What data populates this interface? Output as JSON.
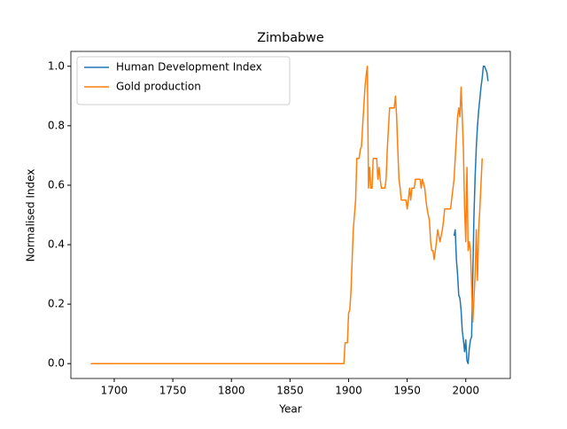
{
  "chart_data": {
    "type": "line",
    "title": "Zimbabwe",
    "xlabel": "Year",
    "ylabel": "Normalised Index",
    "xlim": [
      1663,
      2038
    ],
    "ylim": [
      -0.05,
      1.05
    ],
    "xticks": [
      1700,
      1750,
      1800,
      1850,
      1900,
      1950,
      2000
    ],
    "yticks": [
      {
        "value": 0,
        "label": "0.0"
      },
      0.2,
      0.4,
      0.6,
      0.8,
      {
        "value": 1,
        "label": "1.0"
      }
    ],
    "grid": false,
    "legend": "upper left",
    "series": [
      {
        "name": "Human Development Index",
        "color": "#1f77b4",
        "x": [
          1990,
          1991,
          1992,
          1993,
          1994,
          1995,
          1996,
          1997,
          1998,
          1999,
          2000,
          2001,
          2002,
          2003,
          2004,
          2005,
          2006,
          2007,
          2008,
          2009,
          2010,
          2011,
          2012,
          2013,
          2014,
          2015,
          2016,
          2017,
          2018,
          2019
        ],
        "values": [
          0.43,
          0.45,
          0.35,
          0.3,
          0.23,
          0.22,
          0.18,
          0.11,
          0.08,
          0.04,
          0.08,
          0.01,
          0.0,
          0.05,
          0.08,
          0.09,
          0.3,
          0.5,
          0.63,
          0.73,
          0.8,
          0.85,
          0.89,
          0.93,
          0.96,
          1.0,
          1.0,
          0.99,
          0.98,
          0.95
        ]
      },
      {
        "name": "Gold production",
        "color": "#ff7f0e",
        "x": [
          1680,
          1896,
          1897,
          1899,
          1900,
          1901,
          1902,
          1904,
          1906,
          1907,
          1909,
          1910,
          1911,
          1912,
          1914,
          1915,
          1916,
          1917,
          1918,
          1919,
          1920,
          1921,
          1924,
          1925,
          1926,
          1927,
          1928,
          1931,
          1932,
          1933,
          1934,
          1935,
          1938,
          1939,
          1940,
          1941,
          1942,
          1943,
          1944,
          1945,
          1949,
          1950,
          1951,
          1952,
          1953,
          1954,
          1956,
          1957,
          1961,
          1962,
          1963,
          1965,
          1966,
          1967,
          1969,
          1970,
          1971,
          1972,
          1973,
          1974,
          1975,
          1976,
          1977,
          1978,
          1979,
          1980,
          1981,
          1982,
          1987,
          1990,
          1992,
          1993,
          1994,
          1995,
          1996,
          1997,
          1998,
          1999,
          2000,
          2001,
          2002,
          2003,
          2004,
          2006,
          2008,
          2009,
          2010,
          2011,
          2012,
          2014
        ],
        "values": [
          0,
          0,
          0.07,
          0.07,
          0.17,
          0.18,
          0.24,
          0.45,
          0.55,
          0.69,
          0.69,
          0.72,
          0.73,
          0.8,
          0.93,
          0.97,
          1.0,
          0.59,
          0.66,
          0.59,
          0.59,
          0.69,
          0.69,
          0.62,
          0.66,
          0.62,
          0.59,
          0.59,
          0.62,
          0.72,
          0.79,
          0.86,
          0.86,
          0.86,
          0.9,
          0.83,
          0.72,
          0.62,
          0.59,
          0.55,
          0.55,
          0.52,
          0.55,
          0.59,
          0.55,
          0.59,
          0.59,
          0.62,
          0.62,
          0.59,
          0.62,
          0.59,
          0.55,
          0.52,
          0.48,
          0.41,
          0.38,
          0.38,
          0.35,
          0.38,
          0.41,
          0.45,
          0.43,
          0.41,
          0.43,
          0.45,
          0.48,
          0.52,
          0.52,
          0.62,
          0.76,
          0.83,
          0.86,
          0.83,
          0.93,
          0.83,
          0.72,
          0.52,
          0.41,
          0.66,
          0.38,
          0.41,
          0.38,
          0.14,
          0.3,
          0.45,
          0.28,
          0.45,
          0.52,
          0.69
        ]
      }
    ]
  }
}
